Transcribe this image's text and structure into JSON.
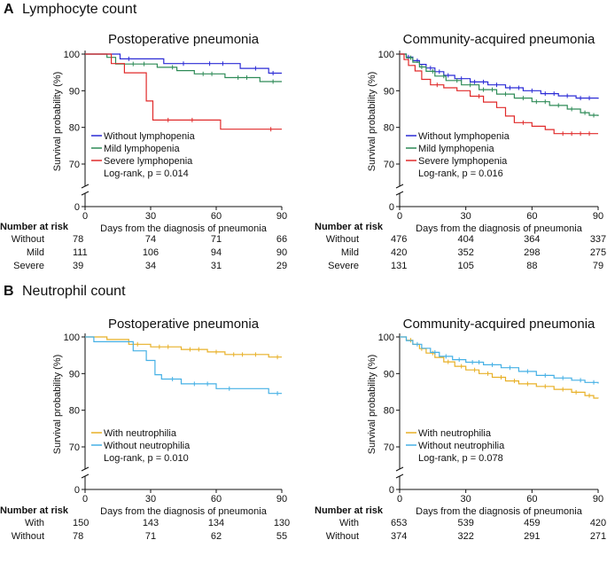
{
  "figure": {
    "panels": [
      {
        "letter": "A",
        "heading": "Lymphocyte count"
      },
      {
        "letter": "B",
        "heading": "Neutrophil count"
      }
    ],
    "shared": {
      "xlabel": "Days from the diagnosis of pneumonia",
      "ylabel": "Survival probability (%)",
      "risk_title": "Number at risk"
    }
  },
  "chart_data": [
    {
      "type": "line",
      "subtype": "kaplan-meier",
      "panel": "A",
      "title": "Postoperative pneumonia",
      "xlabel": "Days from the diagnosis of pneumonia",
      "ylabel": "Survival probability (%)",
      "xlim": [
        0,
        90
      ],
      "xticks": [
        0,
        30,
        60,
        90
      ],
      "ylim": [
        70,
        100
      ],
      "yticks": [
        70,
        80,
        90,
        100
      ],
      "ybreak_label": "0",
      "annotation": "Log-rank, p = 0.014",
      "series": [
        {
          "name": "Without lymphopenia",
          "color": "#2b2bd6",
          "steps": [
            [
              0,
              100
            ],
            [
              16,
              98.7
            ],
            [
              36,
              97.4
            ],
            [
              71,
              96.1
            ],
            [
              84,
              94.8
            ],
            [
              90,
              94.8
            ]
          ],
          "censor": [
            20,
            45,
            57,
            63,
            78,
            86
          ]
        },
        {
          "name": "Mild lymphopenia",
          "color": "#2e8b57",
          "steps": [
            [
              0,
              100
            ],
            [
              10,
              99.1
            ],
            [
              14,
              97.3
            ],
            [
              33,
              96.4
            ],
            [
              42,
              95.5
            ],
            [
              50,
              94.6
            ],
            [
              64,
              93.6
            ],
            [
              80,
              92.5
            ],
            [
              90,
              92.5
            ]
          ],
          "censor": [
            22,
            27,
            40,
            54,
            58,
            70,
            74,
            86
          ]
        },
        {
          "name": "Severe lymphopenia",
          "color": "#e02a2a",
          "steps": [
            [
              0,
              100
            ],
            [
              12,
              97.4
            ],
            [
              18,
              94.9
            ],
            [
              28,
              87.2
            ],
            [
              31,
              82
            ],
            [
              62,
              79.5
            ],
            [
              90,
              79.5
            ]
          ],
          "censor": [
            38,
            49,
            85
          ]
        }
      ],
      "risk_table": {
        "title": "Number at risk",
        "times": [
          0,
          30,
          60,
          90
        ],
        "rows": [
          {
            "label": "Without",
            "values": [
              "78",
              "74",
              "71",
              "66"
            ]
          },
          {
            "label": "Mild",
            "values": [
              "111",
              "106",
              "94",
              "90"
            ]
          },
          {
            "label": "Severe",
            "values": [
              "39",
              "34",
              "31",
              "29"
            ]
          }
        ]
      }
    },
    {
      "type": "line",
      "subtype": "kaplan-meier",
      "panel": "A",
      "title": "Community-acquired pneumonia",
      "xlabel": "Days from the diagnosis of pneumonia",
      "ylabel": "Survival probability (%)",
      "xlim": [
        0,
        90
      ],
      "xticks": [
        0,
        30,
        60,
        90
      ],
      "ylim": [
        70,
        100
      ],
      "yticks": [
        70,
        80,
        90,
        100
      ],
      "ybreak_label": "0",
      "annotation": "Log-rank, p = 0.016",
      "series": [
        {
          "name": "Without lymphopenia",
          "color": "#2b2bd6",
          "steps": [
            [
              0,
              100
            ],
            [
              3,
              99.2
            ],
            [
              6,
              98.2
            ],
            [
              9,
              97.2
            ],
            [
              12,
              96.2
            ],
            [
              16,
              95.2
            ],
            [
              20,
              94.2
            ],
            [
              25,
              93.3
            ],
            [
              32,
              92.4
            ],
            [
              40,
              91.6
            ],
            [
              48,
              90.8
            ],
            [
              56,
              90
            ],
            [
              64,
              89.2
            ],
            [
              72,
              88.6
            ],
            [
              80,
              88
            ],
            [
              90,
              87.8
            ]
          ],
          "censor": [
            4,
            8,
            14,
            18,
            22,
            28,
            34,
            38,
            44,
            50,
            54,
            60,
            66,
            70,
            76,
            82,
            86
          ]
        },
        {
          "name": "Mild lymphopenia",
          "color": "#2e8b57",
          "steps": [
            [
              0,
              100
            ],
            [
              3,
              99
            ],
            [
              6,
              97.8
            ],
            [
              9,
              96.5
            ],
            [
              12,
              95.3
            ],
            [
              16,
              94
            ],
            [
              21,
              92.8
            ],
            [
              28,
              91.6
            ],
            [
              36,
              90.3
            ],
            [
              44,
              89.1
            ],
            [
              52,
              88
            ],
            [
              60,
              87
            ],
            [
              68,
              86
            ],
            [
              76,
              85
            ],
            [
              82,
              84
            ],
            [
              86,
              83.3
            ],
            [
              90,
              83.1
            ]
          ],
          "censor": [
            5,
            10,
            15,
            20,
            26,
            32,
            38,
            42,
            48,
            56,
            62,
            66,
            72,
            78,
            84,
            88
          ]
        },
        {
          "name": "Severe lymphopenia",
          "color": "#e02a2a",
          "steps": [
            [
              0,
              100
            ],
            [
              2,
              98.5
            ],
            [
              4,
              96.9
            ],
            [
              7,
              95.4
            ],
            [
              10,
              93.1
            ],
            [
              14,
              91.6
            ],
            [
              20,
              90.8
            ],
            [
              26,
              90
            ],
            [
              32,
              88.5
            ],
            [
              38,
              86.9
            ],
            [
              44,
              85.4
            ],
            [
              48,
              83.1
            ],
            [
              52,
              81.3
            ],
            [
              60,
              80.3
            ],
            [
              66,
              79.4
            ],
            [
              70,
              78.3
            ],
            [
              90,
              78.3
            ]
          ],
          "censor": [
            17,
            36,
            56,
            74,
            78,
            82,
            86
          ]
        }
      ],
      "risk_table": {
        "title": "Number at risk",
        "times": [
          0,
          30,
          60,
          90
        ],
        "rows": [
          {
            "label": "Without",
            "values": [
              "476",
              "404",
              "364",
              "337"
            ]
          },
          {
            "label": "Mild",
            "values": [
              "420",
              "352",
              "298",
              "275"
            ]
          },
          {
            "label": "Severe",
            "values": [
              "131",
              "105",
              "88",
              "79"
            ]
          }
        ]
      }
    },
    {
      "type": "line",
      "subtype": "kaplan-meier",
      "panel": "B",
      "title": "Postoperative pneumonia",
      "xlabel": "Days from the diagnosis of pneumonia",
      "ylabel": "Survival probability (%)",
      "xlim": [
        0,
        90
      ],
      "xticks": [
        0,
        30,
        60,
        90
      ],
      "ylim": [
        70,
        100
      ],
      "yticks": [
        70,
        80,
        90,
        100
      ],
      "ybreak_label": "0",
      "annotation": "Log-rank, p = 0.010",
      "series": [
        {
          "name": "With neutrophilia",
          "color": "#e8b027",
          "steps": [
            [
              0,
              100
            ],
            [
              10,
              99.3
            ],
            [
              20,
              98
            ],
            [
              30,
              97.3
            ],
            [
              44,
              96.6
            ],
            [
              56,
              95.9
            ],
            [
              64,
              95.2
            ],
            [
              84,
              94.5
            ],
            [
              90,
              94.5
            ]
          ],
          "censor": [
            24,
            34,
            38,
            48,
            52,
            60,
            68,
            72,
            78,
            88
          ]
        },
        {
          "name": "Without neutrophilia",
          "color": "#45b0e5",
          "steps": [
            [
              0,
              100
            ],
            [
              4,
              98.7
            ],
            [
              22,
              96.2
            ],
            [
              28,
              93.6
            ],
            [
              32,
              89.7
            ],
            [
              35,
              88.5
            ],
            [
              44,
              87.2
            ],
            [
              60,
              85.9
            ],
            [
              74,
              85.9
            ],
            [
              84,
              84.6
            ],
            [
              90,
              84.6
            ]
          ],
          "censor": [
            40,
            50,
            56,
            66,
            88
          ]
        }
      ],
      "risk_table": {
        "title": "Number at risk",
        "times": [
          0,
          30,
          60,
          90
        ],
        "rows": [
          {
            "label": "With",
            "values": [
              "150",
              "143",
              "134",
              "130"
            ]
          },
          {
            "label": "Without",
            "values": [
              "78",
              "71",
              "62",
              "55"
            ]
          }
        ]
      }
    },
    {
      "type": "line",
      "subtype": "kaplan-meier",
      "panel": "B",
      "title": "Community-acquired pneumonia",
      "xlabel": "Days from the diagnosis of pneumonia",
      "ylabel": "Survival probability (%)",
      "xlim": [
        0,
        90
      ],
      "xticks": [
        0,
        30,
        60,
        90
      ],
      "ylim": [
        70,
        100
      ],
      "yticks": [
        70,
        80,
        90,
        100
      ],
      "ybreak_label": "0",
      "annotation": "Log-rank, p = 0.078",
      "series": [
        {
          "name": "With neutrophilia",
          "color": "#e8b027",
          "steps": [
            [
              0,
              100
            ],
            [
              3,
              99.1
            ],
            [
              6,
              98
            ],
            [
              9,
              96.8
            ],
            [
              12,
              95.6
            ],
            [
              16,
              94.4
            ],
            [
              20,
              93.2
            ],
            [
              25,
              92
            ],
            [
              30,
              91
            ],
            [
              36,
              90
            ],
            [
              42,
              89
            ],
            [
              48,
              88
            ],
            [
              54,
              87.2
            ],
            [
              62,
              86.5
            ],
            [
              70,
              85.7
            ],
            [
              78,
              84.9
            ],
            [
              84,
              84
            ],
            [
              88,
              83.3
            ],
            [
              90,
              83.2
            ]
          ],
          "censor": [
            5,
            10,
            15,
            22,
            28,
            34,
            40,
            46,
            52,
            58,
            66,
            74,
            80,
            86
          ]
        },
        {
          "name": "Without neutrophilia",
          "color": "#45b0e5",
          "steps": [
            [
              0,
              100
            ],
            [
              3,
              99
            ],
            [
              6,
              98
            ],
            [
              10,
              96.9
            ],
            [
              14,
              95.8
            ],
            [
              18,
              94.7
            ],
            [
              24,
              93.8
            ],
            [
              30,
              93.1
            ],
            [
              38,
              92.4
            ],
            [
              46,
              91.6
            ],
            [
              54,
              90.6
            ],
            [
              62,
              89.5
            ],
            [
              70,
              88.8
            ],
            [
              78,
              88.2
            ],
            [
              84,
              87.6
            ],
            [
              90,
              87.3
            ]
          ],
          "censor": [
            8,
            16,
            21,
            27,
            33,
            36,
            42,
            50,
            58,
            66,
            74,
            82,
            88
          ]
        }
      ],
      "risk_table": {
        "title": "Number at risk",
        "times": [
          0,
          30,
          60,
          90
        ],
        "rows": [
          {
            "label": "With",
            "values": [
              "653",
              "539",
              "459",
              "420"
            ]
          },
          {
            "label": "Without",
            "values": [
              "374",
              "322",
              "291",
              "271"
            ]
          }
        ]
      }
    }
  ]
}
